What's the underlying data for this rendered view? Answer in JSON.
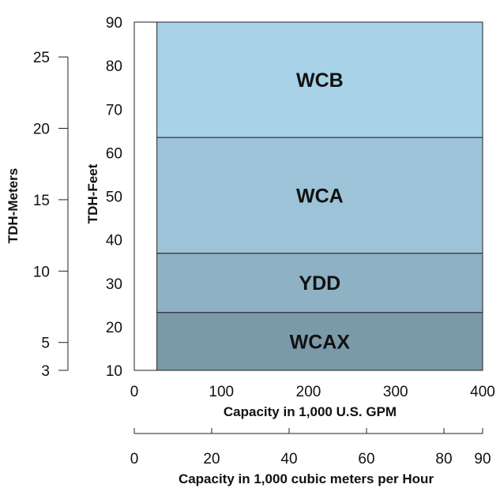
{
  "chart_data": {
    "type": "area",
    "x_axis": {
      "label": "Capacity in 1,000 U.S. GPM",
      "range": [
        0,
        400
      ],
      "ticks": [
        0,
        100,
        200,
        300,
        400
      ]
    },
    "x2_axis": {
      "label": "Capacity in 1,000 cubic meters per Hour",
      "range": [
        0,
        90
      ],
      "ticks": [
        0,
        20,
        40,
        60,
        80,
        90
      ]
    },
    "y_axis": {
      "label": "TDH-Feet",
      "range": [
        10,
        90
      ],
      "ticks": [
        10,
        20,
        30,
        40,
        50,
        60,
        70,
        80,
        90
      ]
    },
    "y2_axis": {
      "label": "TDH-Meters",
      "ticks": [
        {
          "value": 25,
          "feet": 82
        },
        {
          "value": 20,
          "feet": 65.6
        },
        {
          "value": 15,
          "feet": 49.2
        },
        {
          "value": 10,
          "feet": 32.8
        },
        {
          "value": 5,
          "feet": 16.4
        },
        {
          "value": 3,
          "feet": 10
        }
      ]
    },
    "capacity_range": [
      26,
      400
    ],
    "bands": [
      {
        "name": "WCAX",
        "y_range": [
          10,
          23.3
        ],
        "color": "#7a9aaa"
      },
      {
        "name": "YDD",
        "y_range": [
          23.3,
          36.9
        ],
        "color": "#8eb1c4"
      },
      {
        "name": "WCA",
        "y_range": [
          36.9,
          63.5
        ],
        "color": "#9dc3d8"
      },
      {
        "name": "WCB",
        "y_range": [
          63.5,
          90
        ],
        "color": "#a7d2e8"
      }
    ]
  }
}
